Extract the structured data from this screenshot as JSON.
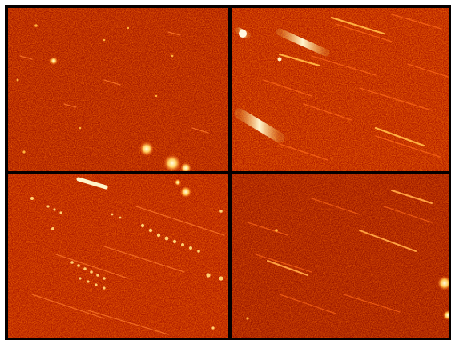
{
  "image": {
    "description_type": "astronomical-mosaic",
    "panels": [
      {
        "id": "top-left",
        "noise_seed": 3,
        "streak_density": "low"
      },
      {
        "id": "top-right",
        "noise_seed": 7,
        "streak_density": "high"
      },
      {
        "id": "bottom-left",
        "noise_seed": 11,
        "streak_density": "medium"
      },
      {
        "id": "bottom-right",
        "noise_seed": 17,
        "streak_density": "medium"
      }
    ],
    "colors": {
      "background": "#b01a00",
      "noise_dark": "#6e0c00",
      "noise_light": "#e04010",
      "streak": "#ff7a2a",
      "bright_core": "#fffbe0",
      "glow": "#ffb03a",
      "divider": "#050000",
      "border": "#ffffff"
    }
  }
}
